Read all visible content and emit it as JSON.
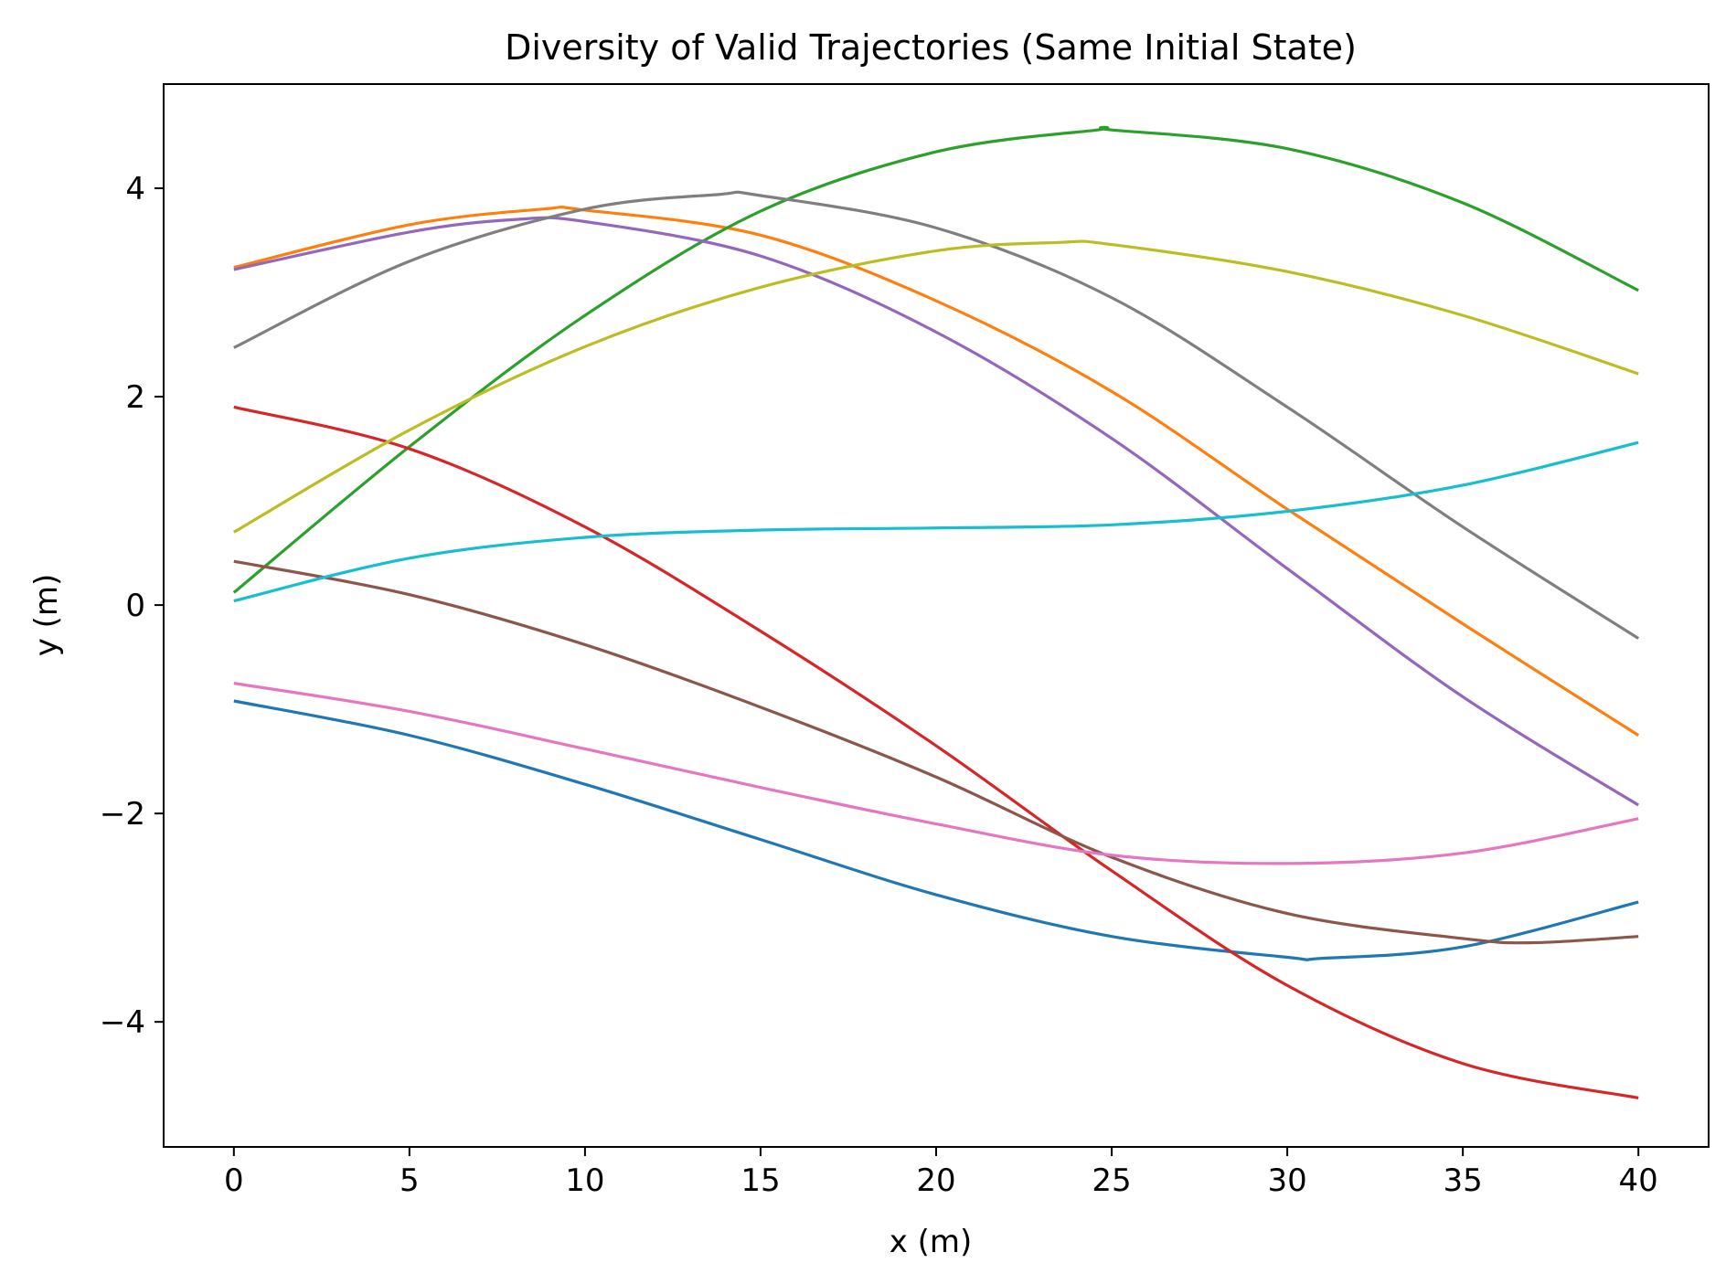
{
  "chart_data": {
    "type": "line",
    "title": "Diversity of Valid Trajectories (Same Initial State)",
    "xlabel": "x (m)",
    "ylabel": "y (m)",
    "xlim": [
      -2,
      42
    ],
    "ylim": [
      -5.2,
      5.0
    ],
    "x_ticks": [
      0,
      5,
      10,
      15,
      20,
      25,
      30,
      35,
      40
    ],
    "y_ticks": [
      -4,
      -2,
      0,
      2,
      4
    ],
    "x_tick_labels": [
      "0",
      "5",
      "10",
      "15",
      "20",
      "25",
      "30",
      "35",
      "40"
    ],
    "y_tick_labels": [
      "−4",
      "−2",
      "0",
      "2",
      "4"
    ],
    "grid": false,
    "legend": "none",
    "series": [
      {
        "color": "#1f77b4",
        "points": [
          [
            0,
            -0.92
          ],
          [
            5,
            -1.25
          ],
          [
            10,
            -1.72
          ],
          [
            15,
            -2.25
          ],
          [
            20,
            -2.78
          ],
          [
            25,
            -3.18
          ],
          [
            30,
            -3.38
          ],
          [
            31,
            -3.39
          ],
          [
            35,
            -3.28
          ],
          [
            40,
            -2.85
          ]
        ]
      },
      {
        "color": "#ff7f0e",
        "points": [
          [
            0,
            3.24
          ],
          [
            5,
            3.65
          ],
          [
            8.8,
            3.8
          ],
          [
            10,
            3.79
          ],
          [
            15,
            3.55
          ],
          [
            20,
            2.92
          ],
          [
            25,
            2.05
          ],
          [
            30,
            0.92
          ],
          [
            35,
            -0.18
          ],
          [
            40,
            -1.25
          ]
        ]
      },
      {
        "color": "#2ca02c",
        "points": [
          [
            0,
            0.12
          ],
          [
            5,
            1.52
          ],
          [
            10,
            2.78
          ],
          [
            15,
            3.78
          ],
          [
            20,
            4.35
          ],
          [
            24.6,
            4.56
          ],
          [
            25,
            4.56
          ],
          [
            30,
            4.38
          ],
          [
            35,
            3.86
          ],
          [
            40,
            3.02
          ]
        ]
      },
      {
        "color": "#d62728",
        "points": [
          [
            0,
            1.9
          ],
          [
            5,
            1.5
          ],
          [
            10,
            0.75
          ],
          [
            15,
            -0.25
          ],
          [
            20,
            -1.35
          ],
          [
            25,
            -2.55
          ],
          [
            30,
            -3.65
          ],
          [
            35,
            -4.4
          ],
          [
            40,
            -4.73
          ]
        ]
      },
      {
        "color": "#9467bd",
        "points": [
          [
            0,
            3.22
          ],
          [
            5,
            3.58
          ],
          [
            8,
            3.7
          ],
          [
            10,
            3.68
          ],
          [
            15,
            3.35
          ],
          [
            20,
            2.62
          ],
          [
            25,
            1.6
          ],
          [
            30,
            0.35
          ],
          [
            35,
            -0.88
          ],
          [
            40,
            -1.92
          ]
        ]
      },
      {
        "color": "#8c564b",
        "points": [
          [
            0,
            0.42
          ],
          [
            5,
            0.1
          ],
          [
            10,
            -0.38
          ],
          [
            15,
            -0.98
          ],
          [
            20,
            -1.65
          ],
          [
            25,
            -2.42
          ],
          [
            30,
            -2.96
          ],
          [
            35,
            -3.2
          ],
          [
            37,
            -3.24
          ],
          [
            40,
            -3.18
          ]
        ]
      },
      {
        "color": "#e377c2",
        "points": [
          [
            0,
            -0.75
          ],
          [
            5,
            -1.02
          ],
          [
            10,
            -1.38
          ],
          [
            15,
            -1.75
          ],
          [
            20,
            -2.1
          ],
          [
            25,
            -2.4
          ],
          [
            30,
            -2.48
          ],
          [
            35,
            -2.38
          ],
          [
            40,
            -2.05
          ]
        ]
      },
      {
        "color": "#7f7f7f",
        "points": [
          [
            0,
            2.47
          ],
          [
            5,
            3.3
          ],
          [
            10,
            3.8
          ],
          [
            13.8,
            3.94
          ],
          [
            15,
            3.93
          ],
          [
            20,
            3.62
          ],
          [
            25,
            2.95
          ],
          [
            30,
            1.9
          ],
          [
            35,
            0.75
          ],
          [
            40,
            -0.32
          ]
        ]
      },
      {
        "color": "#bcbd22",
        "points": [
          [
            0,
            0.7
          ],
          [
            5,
            1.68
          ],
          [
            10,
            2.48
          ],
          [
            15,
            3.05
          ],
          [
            20,
            3.4
          ],
          [
            23.5,
            3.48
          ],
          [
            25,
            3.46
          ],
          [
            30,
            3.2
          ],
          [
            35,
            2.78
          ],
          [
            40,
            2.22
          ]
        ]
      },
      {
        "color": "#17becf",
        "points": [
          [
            0,
            0.04
          ],
          [
            5,
            0.45
          ],
          [
            10,
            0.65
          ],
          [
            15,
            0.72
          ],
          [
            20,
            0.74
          ],
          [
            25,
            0.77
          ],
          [
            30,
            0.9
          ],
          [
            35,
            1.15
          ],
          [
            40,
            1.56
          ]
        ]
      }
    ]
  }
}
